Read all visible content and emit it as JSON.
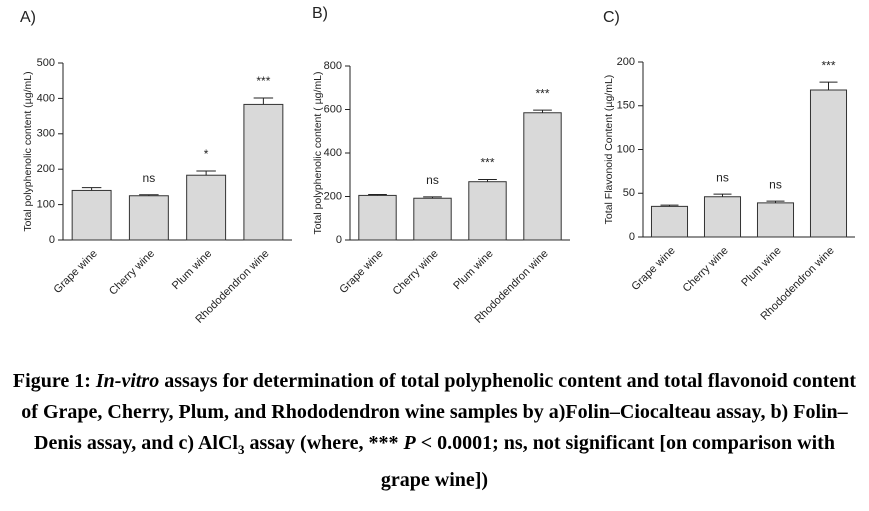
{
  "chart_data": [
    {
      "type": "bar",
      "title": "A)",
      "ylabel": "Total polyphenolic content (µg/mL)",
      "categories": [
        "Grape wine",
        "Cherry wine",
        "Plum wine",
        "Rhododendron wine"
      ],
      "values": [
        140,
        125,
        183,
        383
      ],
      "errors": [
        8,
        3,
        12,
        18
      ],
      "annotations": [
        null,
        "ns",
        "*",
        "***"
      ],
      "color": "#d9d9d9",
      "ylim": [
        0,
        500
      ],
      "yticks": [
        0,
        100,
        200,
        300,
        400,
        500
      ]
    },
    {
      "type": "bar",
      "title": "B)",
      "ylabel": "Total polyphenolic content ( µg/mL)",
      "categories": [
        "Grape wine",
        "Cherry wine",
        "Plum wine",
        "Rhododendron wine"
      ],
      "values": [
        205,
        192,
        268,
        585
      ],
      "errors": [
        4,
        6,
        10,
        12
      ],
      "annotations": [
        null,
        "ns",
        "***",
        "***"
      ],
      "color": "#d9d9d9",
      "ylim": [
        0,
        800
      ],
      "yticks": [
        0,
        200,
        400,
        600,
        800
      ]
    },
    {
      "type": "bar",
      "title": "C)",
      "ylabel": "Total Flavonoid Content (µg/mL)",
      "categories": [
        "Grape wine",
        "Cherry wine",
        "Plum wine",
        "Rhododendron wine"
      ],
      "values": [
        35,
        46,
        39,
        168
      ],
      "errors": [
        1.5,
        3,
        2,
        9
      ],
      "annotations": [
        null,
        "ns",
        "ns",
        "***"
      ],
      "color": "#d9d9d9",
      "ylim": [
        0,
        200
      ],
      "yticks": [
        0,
        50,
        100,
        150,
        200
      ]
    }
  ],
  "caption": {
    "label": "Figure 1:",
    "parts": [
      "In-vitro",
      "assays for determination of total polyphenolic content and total flavonoid content of Grape, Cherry, Plum, and Rhododendron wine samples by a)Folin–Ciocalteau assay, b) Folin–Denis assay, and c) AlCl",
      "3",
      "assay (where, ***",
      "P",
      "< 0.0001; ns, not significant [on comparison with grape wine])"
    ]
  }
}
